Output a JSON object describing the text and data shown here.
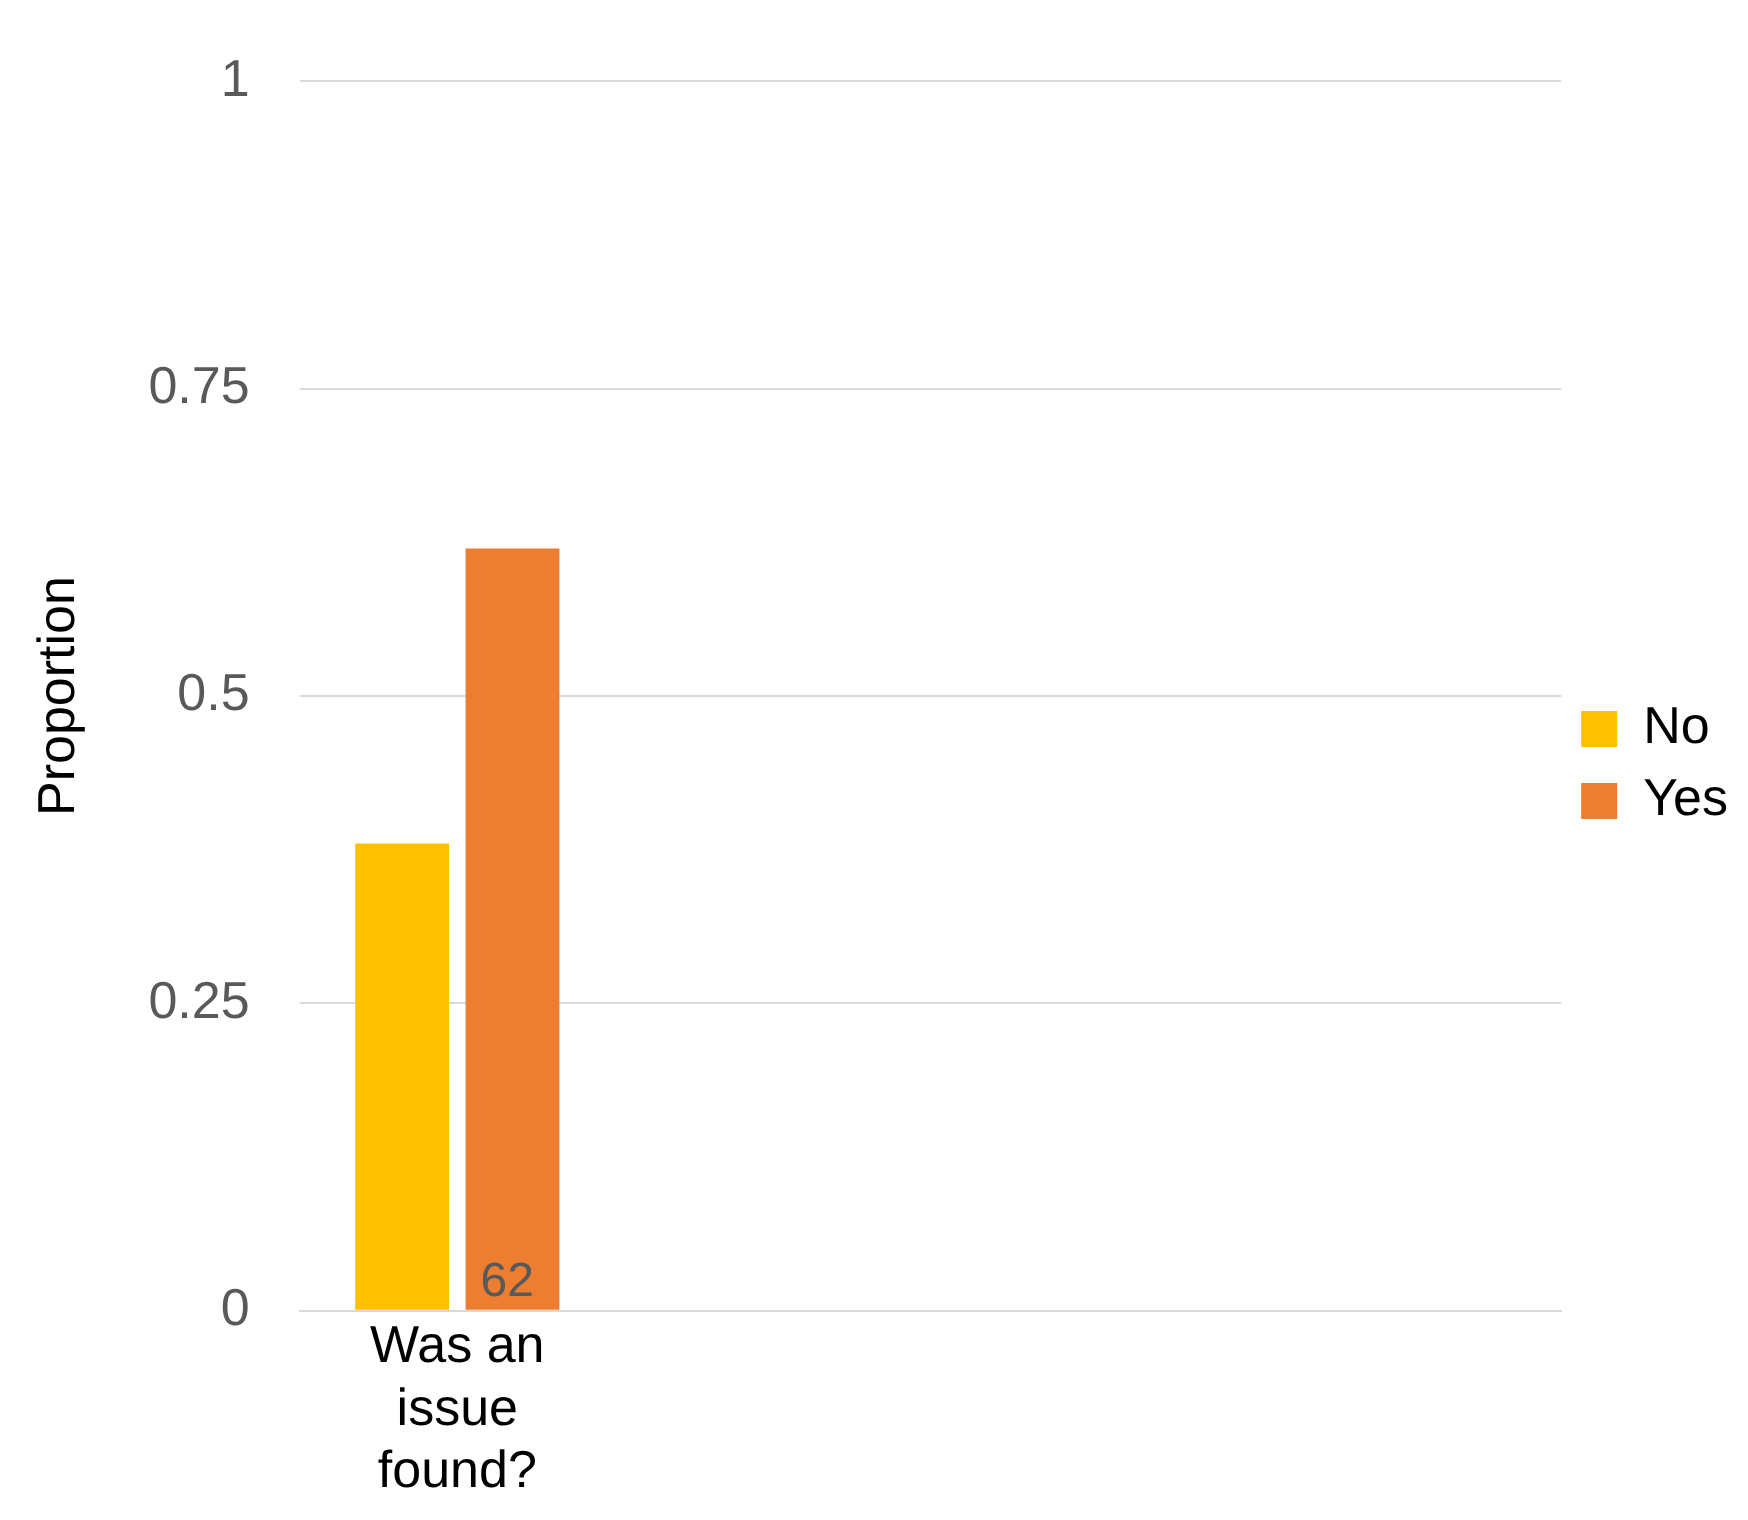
{
  "chart_data": {
    "type": "bar",
    "ylabel": "Proportion",
    "categories": [
      "Was an issue found?",
      null,
      null,
      null
    ],
    "series": [
      {
        "name": "No",
        "color": "#ffc000",
        "values": [
          0.38,
          null,
          null,
          null
        ]
      },
      {
        "name": "Yes",
        "color": "#ed7d31",
        "values": [
          0.62,
          null,
          null,
          null
        ]
      }
    ],
    "annotations": [
      {
        "text": "62",
        "x": "Was an issue found?",
        "y": 0
      }
    ],
    "ylim": [
      0,
      1
    ],
    "yticks": [
      0,
      0.25,
      0.5,
      0.75,
      1
    ],
    "grid": "y",
    "legend": "right"
  }
}
